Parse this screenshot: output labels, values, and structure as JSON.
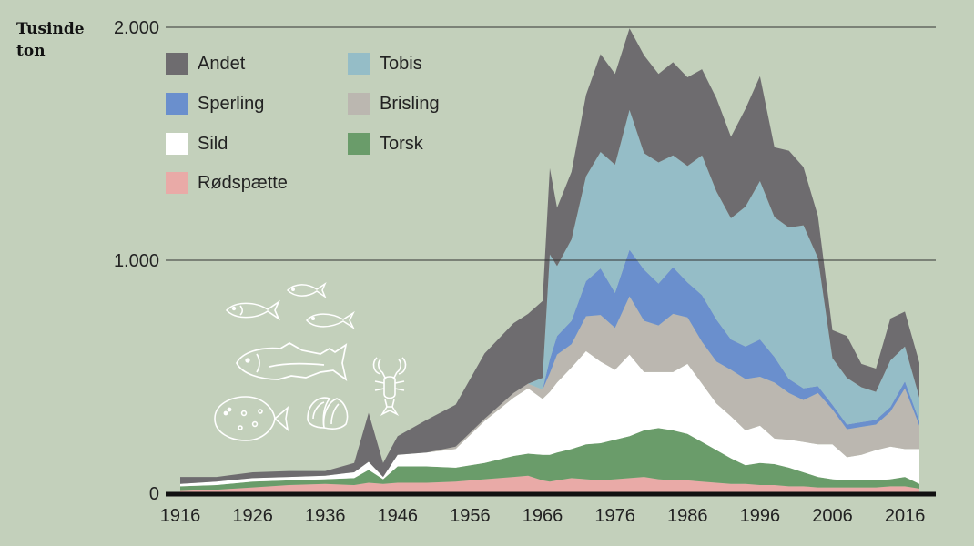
{
  "y_axis_label": [
    "Tusinde",
    "ton"
  ],
  "colors": {
    "background": "#c3d0bb",
    "andet": "#6e6c6f",
    "tobis": "#95bdc7",
    "sperling": "#6a8fcd",
    "brisling": "#bbb7b0",
    "sild": "#ffffff",
    "torsk": "#6a9c6a",
    "rodspaette": "#e9aaa7",
    "axis": "#111111",
    "grid": "#333333"
  },
  "chart_data": {
    "type": "area",
    "stacked": true,
    "title": "",
    "xlabel": "",
    "ylabel": "Tusinde ton",
    "x_ticks": [
      "1916",
      "1926",
      "1936",
      "1946",
      "1956",
      "1966",
      "1976",
      "1986",
      "1996",
      "2006",
      "2016"
    ],
    "y_ticks": [
      "0",
      "1.000",
      "2.000"
    ],
    "xlim": [
      1916,
      2018
    ],
    "ylim": [
      0,
      2000
    ],
    "grid": true,
    "legend_position": "top-left",
    "x": [
      1916,
      1921,
      1926,
      1931,
      1936,
      1940,
      1942,
      1944,
      1946,
      1950,
      1954,
      1958,
      1962,
      1964,
      1966,
      1967,
      1968,
      1970,
      1972,
      1974,
      1976,
      1978,
      1980,
      1982,
      1984,
      1986,
      1988,
      1990,
      1992,
      1994,
      1996,
      1998,
      2000,
      2002,
      2004,
      2006,
      2008,
      2010,
      2012,
      2014,
      2016,
      2018
    ],
    "series": [
      {
        "name": "Rødspætte",
        "values": [
          10,
          15,
          25,
          35,
          40,
          35,
          45,
          40,
          45,
          45,
          50,
          60,
          70,
          75,
          55,
          50,
          55,
          65,
          60,
          55,
          60,
          65,
          70,
          60,
          55,
          55,
          50,
          45,
          40,
          40,
          35,
          35,
          30,
          30,
          25,
          25,
          25,
          25,
          25,
          30,
          30,
          20
        ]
      },
      {
        "name": "Torsk",
        "values": [
          20,
          20,
          25,
          20,
          20,
          30,
          55,
          20,
          70,
          70,
          60,
          70,
          90,
          95,
          110,
          115,
          120,
          125,
          150,
          160,
          170,
          180,
          200,
          220,
          215,
          200,
          170,
          140,
          110,
          80,
          95,
          90,
          80,
          60,
          45,
          35,
          30,
          30,
          30,
          30,
          40,
          20
        ]
      },
      {
        "name": "Sild",
        "values": [
          10,
          15,
          15,
          15,
          15,
          25,
          35,
          10,
          50,
          60,
          80,
          180,
          250,
          280,
          240,
          270,
          300,
          350,
          400,
          350,
          300,
          350,
          250,
          240,
          250,
          300,
          250,
          200,
          180,
          150,
          160,
          110,
          120,
          130,
          140,
          150,
          100,
          110,
          130,
          140,
          120,
          150
        ]
      },
      {
        "name": "Brisling",
        "values": [
          0,
          0,
          0,
          0,
          0,
          0,
          0,
          0,
          0,
          0,
          10,
          10,
          20,
          20,
          40,
          80,
          120,
          100,
          150,
          200,
          180,
          250,
          220,
          200,
          250,
          200,
          180,
          180,
          200,
          220,
          210,
          240,
          200,
          180,
          220,
          150,
          120,
          120,
          110,
          150,
          260,
          100
        ]
      },
      {
        "name": "Sperling",
        "values": [
          0,
          0,
          0,
          0,
          0,
          0,
          0,
          0,
          0,
          0,
          0,
          0,
          0,
          0,
          0,
          60,
          80,
          100,
          150,
          200,
          150,
          200,
          220,
          180,
          200,
          150,
          200,
          180,
          130,
          140,
          160,
          110,
          60,
          50,
          30,
          20,
          20,
          20,
          20,
          20,
          30,
          20
        ]
      },
      {
        "name": "Tobis",
        "values": [
          0,
          0,
          0,
          0,
          0,
          0,
          0,
          0,
          0,
          0,
          0,
          0,
          0,
          0,
          50,
          450,
          300,
          350,
          450,
          500,
          550,
          600,
          500,
          520,
          480,
          500,
          600,
          550,
          520,
          600,
          680,
          600,
          650,
          700,
          550,
          200,
          200,
          150,
          120,
          200,
          150,
          100
        ]
      },
      {
        "name": "Andet",
        "values": [
          30,
          20,
          25,
          25,
          20,
          40,
          210,
          60,
          80,
          140,
          180,
          280,
          300,
          300,
          330,
          370,
          250,
          290,
          350,
          420,
          390,
          350,
          420,
          380,
          400,
          380,
          370,
          400,
          350,
          420,
          450,
          300,
          330,
          250,
          180,
          120,
          180,
          100,
          100,
          180,
          150,
          150
        ]
      }
    ]
  }
}
